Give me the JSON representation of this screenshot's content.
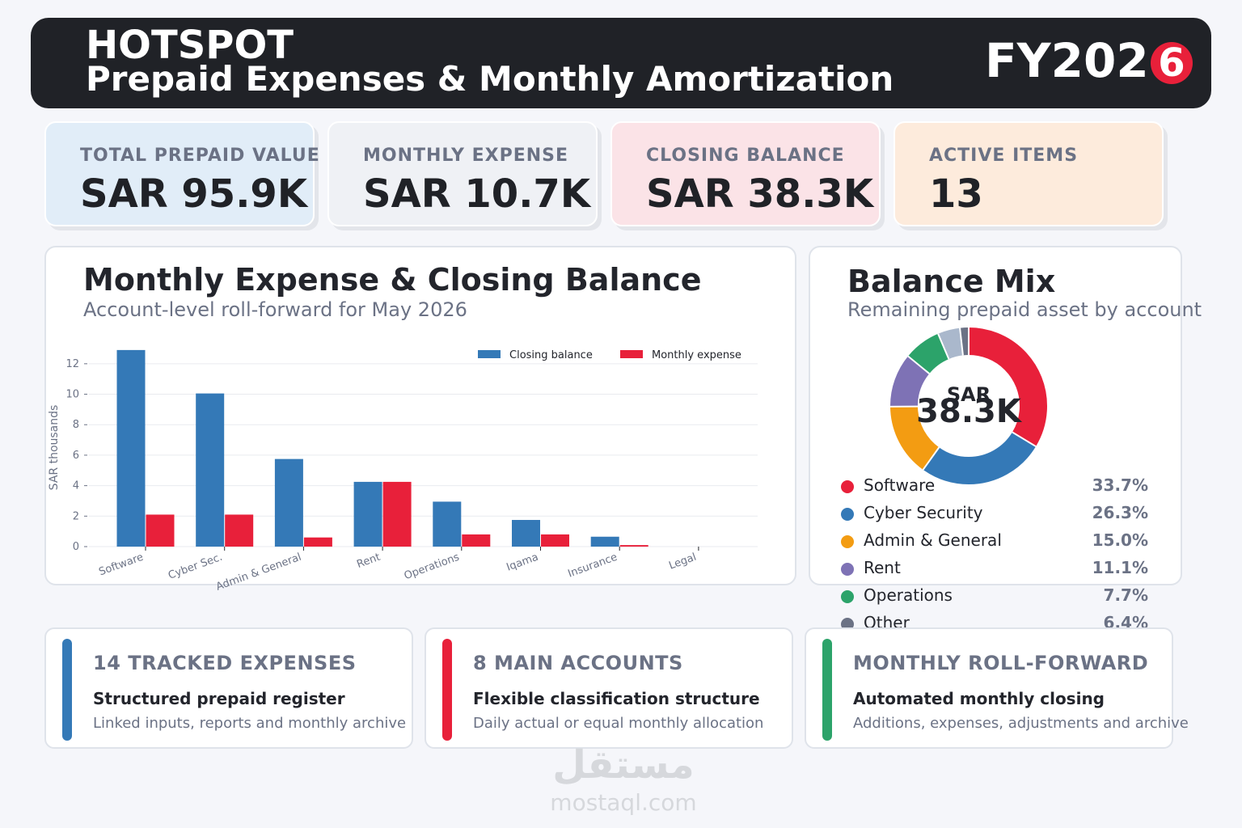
{
  "header": {
    "brand": "HOTSPOT",
    "title": "Prepaid Expenses & Monthly Amortization",
    "fy_prefix": "FY202",
    "fy_badge": "6"
  },
  "kpis": [
    {
      "label": "TOTAL PREPAID VALUE",
      "value": "SAR 95.9K",
      "bg": "#e1edf8"
    },
    {
      "label": "MONTHLY EXPENSE",
      "value": "SAR 10.7K",
      "bg": "#eff1f5"
    },
    {
      "label": "CLOSING BALANCE",
      "value": "SAR 38.3K",
      "bg": "#fbe3e7"
    },
    {
      "label": "ACTIVE ITEMS",
      "value": "13",
      "bg": "#fdebdc"
    }
  ],
  "colors": {
    "closing": "#3479b7",
    "expense": "#e8203a"
  },
  "chart_data": [
    {
      "type": "bar",
      "title": "Monthly Expense & Closing Balance",
      "subtitle": "Account-level roll-forward for May 2026",
      "ylabel": "SAR thousands",
      "ylim": [
        0,
        13
      ],
      "yticks": [
        0,
        2,
        4,
        6,
        8,
        10,
        12
      ],
      "grid": true,
      "legend": "top-right",
      "categories": [
        "Software",
        "Cyber Sec.",
        "Admin & General",
        "Rent",
        "Operations",
        "Iqama",
        "Insurance",
        "Legal"
      ],
      "series": [
        {
          "name": "Closing balance",
          "values": [
            12.9,
            10.05,
            5.75,
            4.25,
            2.95,
            1.75,
            0.65,
            0
          ]
        },
        {
          "name": "Monthly expense",
          "values": [
            2.1,
            2.1,
            0.6,
            4.25,
            0.8,
            0.8,
            0.1,
            0
          ]
        }
      ]
    },
    {
      "type": "pie",
      "title": "Balance Mix",
      "subtitle": "Remaining prepaid asset by account",
      "center_label_top": "SAR",
      "center_label_value": "38.3K",
      "slices": [
        {
          "name": "Software",
          "value": 33.7,
          "color": "#e8203a",
          "pct_label": "33.7%"
        },
        {
          "name": "Cyber Security",
          "value": 26.3,
          "color": "#3479b7",
          "pct_label": "26.3%"
        },
        {
          "name": "Admin & General",
          "value": 15.0,
          "color": "#f39c12",
          "pct_label": "15.0%"
        },
        {
          "name": "Rent",
          "value": 11.1,
          "color": "#7e72b5",
          "pct_label": "11.1%"
        },
        {
          "name": "Operations",
          "value": 7.7,
          "color": "#2ca36a",
          "pct_label": "7.7%"
        },
        {
          "name": "Other",
          "value": 6.4,
          "color": "#6b7285",
          "pct_label": "6.4%"
        }
      ],
      "other_breakdown": [
        {
          "value": 4.6,
          "color": "#aab8cc"
        },
        {
          "value": 1.8,
          "color": "#6b7285"
        }
      ]
    }
  ],
  "cards": [
    {
      "title": "14 TRACKED EXPENSES",
      "heading": "Structured prepaid register",
      "desc": "Linked inputs, reports and monthly archive",
      "color": "#3479b7"
    },
    {
      "title": "8 MAIN ACCOUNTS",
      "heading": "Flexible classification structure",
      "desc": "Daily actual or equal monthly allocation",
      "color": "#e8203a"
    },
    {
      "title": "MONTHLY ROLL-FORWARD",
      "heading": "Automated monthly closing",
      "desc": "Additions, expenses, adjustments and archive",
      "color": "#2ca36a"
    }
  ],
  "watermark": {
    "arabic": "مستقل",
    "latin": "mostaql.com"
  }
}
